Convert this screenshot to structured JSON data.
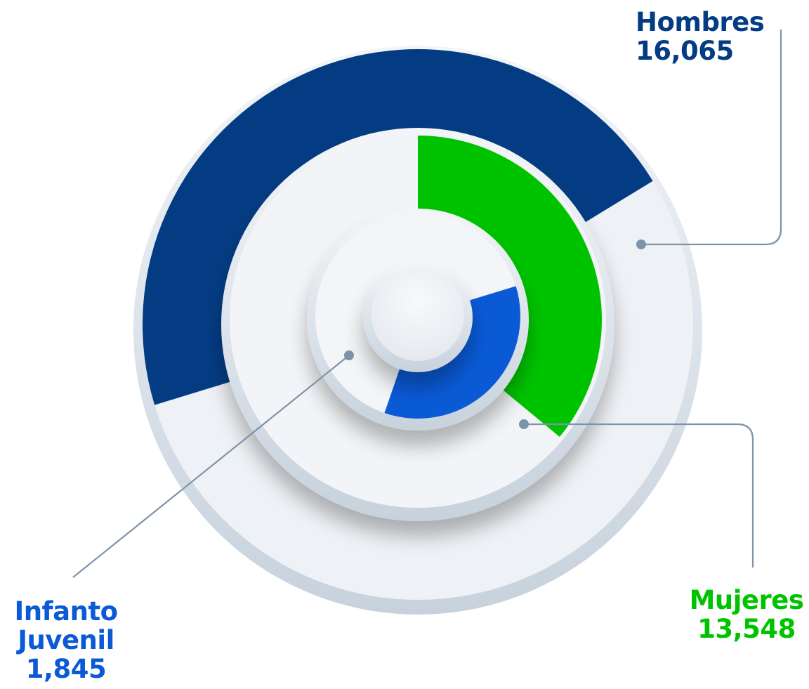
{
  "chart_data": {
    "type": "radial_bar",
    "title": "",
    "series": [
      {
        "name": "Hombres",
        "label": "Hombres",
        "value_text": "16,065",
        "value": 16065,
        "color": "#043c83",
        "fraction": 0.46
      },
      {
        "name": "Mujeres",
        "label": "Mujeres",
        "value_text": "13,548",
        "value": 13548,
        "color": "#00c300",
        "fraction": 0.36
      },
      {
        "name": "Infanto Juvenil",
        "label_line1": "Infanto",
        "label_line2": "Juvenil",
        "value_text": "1,845",
        "value": 1845,
        "color": "#0a5ad6",
        "fraction": 0.35
      }
    ],
    "track_color": "#e8ecf1",
    "leader_color": "#7d93ab"
  }
}
